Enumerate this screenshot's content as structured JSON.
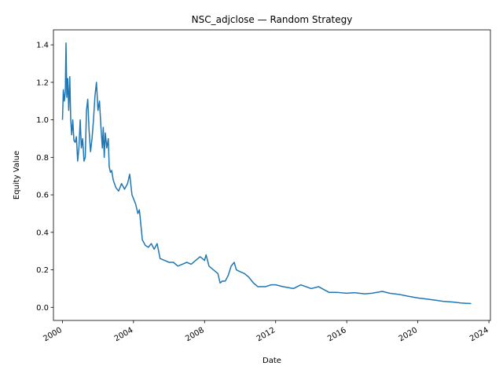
{
  "chart_data": {
    "type": "line",
    "title": "NSC_adjclose — Random Strategy",
    "xlabel": "Date",
    "ylabel": "Equity Value",
    "xlim": [
      "1999-07-01",
      "2024-02-01"
    ],
    "ylim": [
      -0.07,
      1.48
    ],
    "x_ticks": [
      "2000",
      "2004",
      "2008",
      "2012",
      "2016",
      "2020",
      "2024"
    ],
    "y_ticks": [
      "0.0",
      "0.2",
      "0.4",
      "0.6",
      "0.8",
      "1.0",
      "1.2",
      "1.4"
    ],
    "grid": false,
    "legend": "none",
    "series": [
      {
        "color": "#1f77b4",
        "points": [
          [
            "2000-01-03",
            1.0
          ],
          [
            "2000-01-20",
            1.16
          ],
          [
            "2000-02-10",
            1.1
          ],
          [
            "2000-03-01",
            1.15
          ],
          [
            "2000-03-15",
            1.41
          ],
          [
            "2000-04-01",
            1.12
          ],
          [
            "2000-04-20",
            1.22
          ],
          [
            "2000-05-10",
            1.05
          ],
          [
            "2000-06-01",
            1.23
          ],
          [
            "2000-06-20",
            1.0
          ],
          [
            "2000-07-10",
            0.92
          ],
          [
            "2000-08-01",
            1.0
          ],
          [
            "2000-08-25",
            0.89
          ],
          [
            "2000-09-20",
            0.88
          ],
          [
            "2000-10-15",
            0.91
          ],
          [
            "2000-11-10",
            0.78
          ],
          [
            "2000-12-05",
            0.85
          ],
          [
            "2001-01-01",
            1.0
          ],
          [
            "2001-01-25",
            0.85
          ],
          [
            "2001-02-20",
            0.9
          ],
          [
            "2001-03-20",
            0.78
          ],
          [
            "2001-04-15",
            0.8
          ],
          [
            "2001-05-10",
            1.05
          ],
          [
            "2001-06-05",
            1.11
          ],
          [
            "2001-07-01",
            0.95
          ],
          [
            "2001-08-01",
            0.83
          ],
          [
            "2001-09-01",
            0.9
          ],
          [
            "2001-10-01",
            1.0
          ],
          [
            "2001-11-01",
            1.13
          ],
          [
            "2001-12-01",
            1.2
          ],
          [
            "2002-01-01",
            1.05
          ],
          [
            "2002-02-01",
            1.1
          ],
          [
            "2002-03-01",
            0.97
          ],
          [
            "2002-04-01",
            0.85
          ],
          [
            "2002-04-20",
            0.96
          ],
          [
            "2002-05-10",
            0.8
          ],
          [
            "2002-06-01",
            0.93
          ],
          [
            "2002-07-01",
            0.85
          ],
          [
            "2002-08-01",
            0.9
          ],
          [
            "2002-08-20",
            0.75
          ],
          [
            "2002-09-15",
            0.72
          ],
          [
            "2002-10-10",
            0.73
          ],
          [
            "2002-11-10",
            0.68
          ],
          [
            "2003-01-01",
            0.64
          ],
          [
            "2003-03-01",
            0.62
          ],
          [
            "2003-05-01",
            0.66
          ],
          [
            "2003-07-01",
            0.63
          ],
          [
            "2003-09-01",
            0.66
          ],
          [
            "2003-10-15",
            0.71
          ],
          [
            "2003-12-01",
            0.6
          ],
          [
            "2004-01-01",
            0.58
          ],
          [
            "2004-02-15",
            0.55
          ],
          [
            "2004-04-01",
            0.5
          ],
          [
            "2004-05-01",
            0.52
          ],
          [
            "2004-06-01",
            0.44
          ],
          [
            "2004-07-01",
            0.36
          ],
          [
            "2004-09-01",
            0.33
          ],
          [
            "2004-11-01",
            0.32
          ],
          [
            "2005-01-01",
            0.34
          ],
          [
            "2005-03-01",
            0.31
          ],
          [
            "2005-05-01",
            0.34
          ],
          [
            "2005-07-01",
            0.26
          ],
          [
            "2005-10-01",
            0.25
          ],
          [
            "2006-01-01",
            0.24
          ],
          [
            "2006-04-01",
            0.24
          ],
          [
            "2006-07-01",
            0.22
          ],
          [
            "2006-10-01",
            0.23
          ],
          [
            "2007-01-01",
            0.24
          ],
          [
            "2007-04-01",
            0.23
          ],
          [
            "2007-07-01",
            0.25
          ],
          [
            "2007-10-01",
            0.27
          ],
          [
            "2008-01-01",
            0.25
          ],
          [
            "2008-02-01",
            0.28
          ],
          [
            "2008-04-01",
            0.22
          ],
          [
            "2008-07-01",
            0.2
          ],
          [
            "2008-10-01",
            0.18
          ],
          [
            "2008-11-15",
            0.13
          ],
          [
            "2009-01-01",
            0.14
          ],
          [
            "2009-03-01",
            0.14
          ],
          [
            "2009-05-01",
            0.17
          ],
          [
            "2009-07-01",
            0.22
          ],
          [
            "2009-09-01",
            0.24
          ],
          [
            "2009-10-15",
            0.2
          ],
          [
            "2010-01-01",
            0.19
          ],
          [
            "2010-04-01",
            0.18
          ],
          [
            "2010-07-01",
            0.16
          ],
          [
            "2010-10-01",
            0.13
          ],
          [
            "2011-01-01",
            0.11
          ],
          [
            "2011-06-01",
            0.11
          ],
          [
            "2011-10-01",
            0.12
          ],
          [
            "2012-01-01",
            0.12
          ],
          [
            "2012-06-01",
            0.11
          ],
          [
            "2013-01-01",
            0.1
          ],
          [
            "2013-06-01",
            0.12
          ],
          [
            "2014-01-01",
            0.1
          ],
          [
            "2014-06-01",
            0.11
          ],
          [
            "2015-01-01",
            0.08
          ],
          [
            "2015-06-01",
            0.08
          ],
          [
            "2016-01-01",
            0.075
          ],
          [
            "2016-06-01",
            0.078
          ],
          [
            "2017-01-01",
            0.072
          ],
          [
            "2017-06-01",
            0.075
          ],
          [
            "2018-01-01",
            0.085
          ],
          [
            "2018-06-01",
            0.075
          ],
          [
            "2019-01-01",
            0.068
          ],
          [
            "2019-06-01",
            0.06
          ],
          [
            "2020-01-01",
            0.05
          ],
          [
            "2020-06-01",
            0.045
          ],
          [
            "2021-01-01",
            0.038
          ],
          [
            "2021-06-01",
            0.032
          ],
          [
            "2022-01-01",
            0.028
          ],
          [
            "2022-06-01",
            0.023
          ],
          [
            "2022-10-01",
            0.021
          ],
          [
            "2023-01-01",
            0.02
          ]
        ]
      }
    ]
  }
}
